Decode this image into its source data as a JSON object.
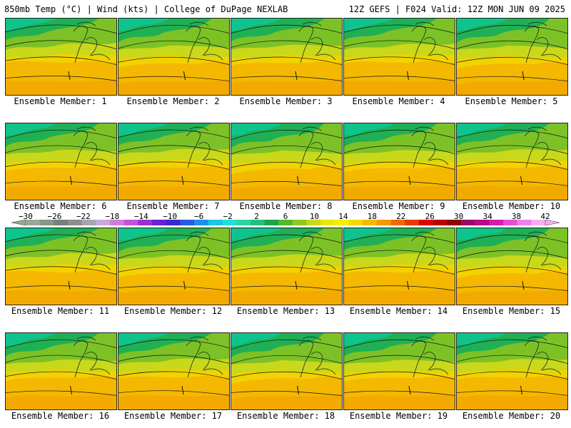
{
  "header": {
    "left_title": "850mb Temp (°C) | Wind (kts) | College of DuPage NEXLAB",
    "right_title": "12Z GEFS | F024 Valid: 12Z MON JUN 09 2025"
  },
  "colorbar": {
    "tick_labels": [
      "−30",
      "−26",
      "−22",
      "−18",
      "−14",
      "−10",
      "−6",
      "−2",
      "2",
      "6",
      "10",
      "14",
      "18",
      "22",
      "26",
      "30",
      "34",
      "38",
      "42"
    ],
    "colors": [
      "#9aa89a",
      "#88958a",
      "#777f78",
      "#8d8d8d",
      "#a6a6b0",
      "#c9a9d8",
      "#d27be0",
      "#c64fd8",
      "#9b2fd6",
      "#6a1fd0",
      "#3a28d0",
      "#2a5ae0",
      "#1d8fe8",
      "#1dc4e8",
      "#1de0d8",
      "#2ad6a0",
      "#22c07a",
      "#1aa648",
      "#54b82c",
      "#90c820",
      "#c8d81c",
      "#e8e810",
      "#f4f000",
      "#f8d600",
      "#f8b800",
      "#f39a00",
      "#ec6c00",
      "#e63a00",
      "#dd0000",
      "#b60000",
      "#8c0000",
      "#980a6a",
      "#b80a8c",
      "#d81ab0",
      "#e84cd0",
      "#f080e8",
      "#f6b0f0"
    ]
  },
  "panels": [
    {
      "label": "Ensemble Member: 1"
    },
    {
      "label": "Ensemble Member: 2"
    },
    {
      "label": "Ensemble Member: 3"
    },
    {
      "label": "Ensemble Member: 4"
    },
    {
      "label": "Ensemble Member: 5"
    },
    {
      "label": "Ensemble Member: 6"
    },
    {
      "label": "Ensemble Member: 7"
    },
    {
      "label": "Ensemble Member: 8"
    },
    {
      "label": "Ensemble Member: 9"
    },
    {
      "label": "Ensemble Member: 10"
    },
    {
      "label": "Ensemble Member: 11"
    },
    {
      "label": "Ensemble Member: 12"
    },
    {
      "label": "Ensemble Member: 13"
    },
    {
      "label": "Ensemble Member: 14"
    },
    {
      "label": "Ensemble Member: 15"
    },
    {
      "label": "Ensemble Member: 16"
    },
    {
      "label": "Ensemble Member: 17"
    },
    {
      "label": "Ensemble Member: 18"
    },
    {
      "label": "Ensemble Member: 19"
    },
    {
      "label": "Ensemble Member: 20"
    }
  ]
}
